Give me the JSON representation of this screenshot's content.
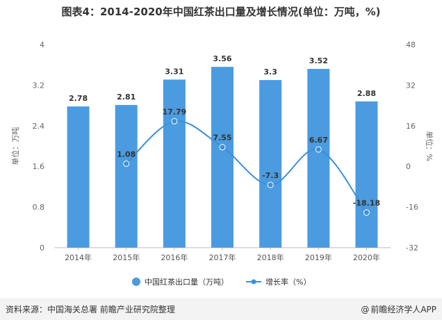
{
  "chart_data": {
    "type": "bar",
    "title": "图表4：2014-2020年中国红茶出口量及增长情况(单位：万吨，%)",
    "categories": [
      "2014年",
      "2015年",
      "2016年",
      "2017年",
      "2018年",
      "2019年",
      "2020年"
    ],
    "series": [
      {
        "name": "中国红茶出口量（万吨）",
        "type": "bar",
        "axis": "left",
        "values": [
          2.78,
          2.81,
          3.31,
          3.56,
          3.3,
          3.52,
          2.88
        ],
        "labels": [
          "2.78",
          "2.81",
          "3.31",
          "3.56",
          "3.3",
          "3.52",
          "2.88"
        ]
      },
      {
        "name": "增长率（%）",
        "type": "line",
        "axis": "right",
        "values": [
          null,
          1.08,
          17.79,
          7.55,
          -7.3,
          6.67,
          -18.18
        ],
        "labels": [
          "",
          "1.08",
          "17.79",
          "7.55",
          "-7.3",
          "6.67",
          "-18.18"
        ]
      }
    ],
    "ylabel": "单位：万吨",
    "y2label": "单位：%",
    "ylim": [
      0,
      4
    ],
    "y2lim": [
      -32,
      48
    ],
    "yticks": [
      "0",
      "0.8",
      "1.6",
      "2.4",
      "3.2",
      "4"
    ],
    "y2ticks": [
      "-32",
      "-16",
      "0",
      "16",
      "32",
      "48"
    ],
    "legend_position": "bottom"
  },
  "colors": {
    "bar": "#4b9be0",
    "line": "#3d8fd8"
  },
  "footer": {
    "source": "资料来源：中国海关总署 前瞻产业研究院整理",
    "brand": "前瞻经济学人APP",
    "brand_icon": "@"
  }
}
